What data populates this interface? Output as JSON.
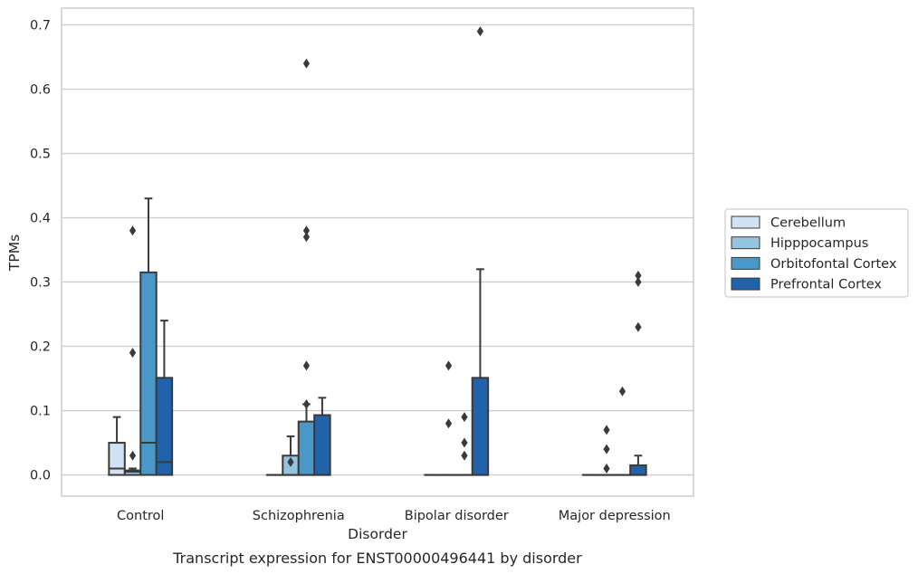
{
  "chart_data": {
    "type": "box",
    "caption": "Transcript expression for ENST00000496441 by disorder",
    "xlabel": "Disorder",
    "ylabel": "TPMs",
    "ylim": [
      -0.033,
      0.726
    ],
    "yticks": [
      0.0,
      0.1,
      0.2,
      0.3,
      0.4,
      0.5,
      0.6,
      0.7
    ],
    "ytick_labels": [
      "0.0",
      "0.1",
      "0.2",
      "0.3",
      "0.4",
      "0.5",
      "0.6",
      "0.7"
    ],
    "grid": "horizontal",
    "legend_position": "right",
    "categories": [
      "Control",
      "Schizophrenia",
      "Bipolar disorder",
      "Major depression"
    ],
    "series": [
      {
        "name": "Cerebellum",
        "color": "#d0e1f2",
        "boxes": [
          {
            "q1": 0.0,
            "median": 0.01,
            "q3": 0.05,
            "whisker_low": 0.0,
            "whisker_high": 0.09,
            "outliers": []
          },
          {
            "q1": 0.0,
            "median": 0.0,
            "q3": 0.0,
            "whisker_low": 0.0,
            "whisker_high": 0.0,
            "outliers": []
          },
          {
            "q1": 0.0,
            "median": 0.0,
            "q3": 0.0,
            "whisker_low": 0.0,
            "whisker_high": 0.0,
            "outliers": []
          },
          {
            "q1": 0.0,
            "median": 0.0,
            "q3": 0.0,
            "whisker_low": 0.0,
            "whisker_high": 0.0,
            "outliers": []
          }
        ]
      },
      {
        "name": "Hipppocampus",
        "color": "#94c4df",
        "boxes": [
          {
            "q1": 0.0,
            "median": 0.005,
            "q3": 0.007,
            "whisker_low": 0.0,
            "whisker_high": 0.01,
            "outliers": [
              0.03,
              0.19,
              0.38
            ]
          },
          {
            "q1": 0.0,
            "median": 0.0,
            "q3": 0.03,
            "whisker_low": 0.0,
            "whisker_high": 0.06,
            "outliers": [
              0.02
            ]
          },
          {
            "q1": 0.0,
            "median": 0.0,
            "q3": 0.0,
            "whisker_low": 0.0,
            "whisker_high": 0.0,
            "outliers": [
              0.17,
              0.08
            ]
          },
          {
            "q1": 0.0,
            "median": 0.0,
            "q3": 0.0,
            "whisker_low": 0.0,
            "whisker_high": 0.0,
            "outliers": [
              0.07,
              0.04,
              0.01
            ]
          }
        ]
      },
      {
        "name": "Orbitofontal Cortex",
        "color": "#4a98c9",
        "boxes": [
          {
            "q1": 0.0,
            "median": 0.05,
            "q3": 0.315,
            "whisker_low": 0.0,
            "whisker_high": 0.43,
            "outliers": []
          },
          {
            "q1": 0.0,
            "median": 0.0,
            "q3": 0.083,
            "whisker_low": 0.0,
            "whisker_high": 0.11,
            "outliers": [
              0.11,
              0.17,
              0.37,
              0.38,
              0.64
            ]
          },
          {
            "q1": 0.0,
            "median": 0.0,
            "q3": 0.0,
            "whisker_low": 0.0,
            "whisker_high": 0.0,
            "outliers": [
              0.09,
              0.05,
              0.03
            ]
          },
          {
            "q1": 0.0,
            "median": 0.0,
            "q3": 0.0,
            "whisker_low": 0.0,
            "whisker_high": 0.0,
            "outliers": [
              0.13
            ]
          }
        ]
      },
      {
        "name": "Prefrontal Cortex",
        "color": "#2163aa",
        "boxes": [
          {
            "q1": 0.0,
            "median": 0.02,
            "q3": 0.151,
            "whisker_low": 0.0,
            "whisker_high": 0.24,
            "outliers": []
          },
          {
            "q1": 0.0,
            "median": 0.0,
            "q3": 0.093,
            "whisker_low": 0.0,
            "whisker_high": 0.12,
            "outliers": []
          },
          {
            "q1": 0.0,
            "median": 0.0,
            "q3": 0.151,
            "whisker_low": 0.0,
            "whisker_high": 0.32,
            "outliers": [
              0.69
            ]
          },
          {
            "q1": 0.0,
            "median": 0.0,
            "q3": 0.015,
            "whisker_low": 0.0,
            "whisker_high": 0.03,
            "outliers": [
              0.23,
              0.3,
              0.31
            ]
          }
        ]
      }
    ]
  }
}
